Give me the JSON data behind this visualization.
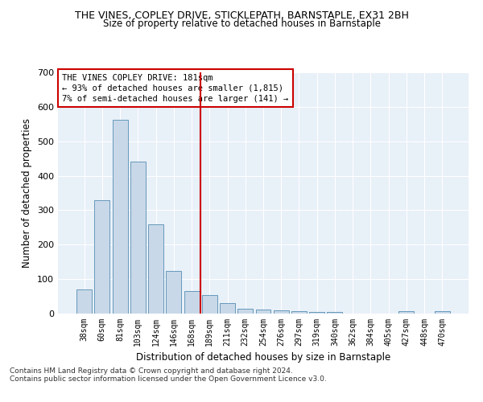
{
  "title_line1": "THE VINES, COPLEY DRIVE, STICKLEPATH, BARNSTAPLE, EX31 2BH",
  "title_line2": "Size of property relative to detached houses in Barnstaple",
  "xlabel": "Distribution of detached houses by size in Barnstaple",
  "ylabel": "Number of detached properties",
  "categories": [
    "38sqm",
    "60sqm",
    "81sqm",
    "103sqm",
    "124sqm",
    "146sqm",
    "168sqm",
    "189sqm",
    "211sqm",
    "232sqm",
    "254sqm",
    "276sqm",
    "297sqm",
    "319sqm",
    "340sqm",
    "362sqm",
    "384sqm",
    "405sqm",
    "427sqm",
    "448sqm",
    "470sqm"
  ],
  "values": [
    70,
    330,
    563,
    442,
    260,
    123,
    65,
    53,
    30,
    15,
    12,
    10,
    6,
    4,
    4,
    0,
    0,
    0,
    6,
    0,
    6
  ],
  "bar_color": "#c8d8e8",
  "bar_edge_color": "#6699bb",
  "vline_x_index": 7,
  "vline_color": "#cc0000",
  "annotation_text": "THE VINES COPLEY DRIVE: 181sqm\n← 93% of detached houses are smaller (1,815)\n7% of semi-detached houses are larger (141) →",
  "annotation_box_color": "#ffffff",
  "annotation_box_edge_color": "#cc0000",
  "ylim": [
    0,
    700
  ],
  "yticks": [
    0,
    100,
    200,
    300,
    400,
    500,
    600,
    700
  ],
  "background_color": "#e8f0f8",
  "footnote_line1": "Contains HM Land Registry data © Crown copyright and database right 2024.",
  "footnote_line2": "Contains public sector information licensed under the Open Government Licence v3.0."
}
